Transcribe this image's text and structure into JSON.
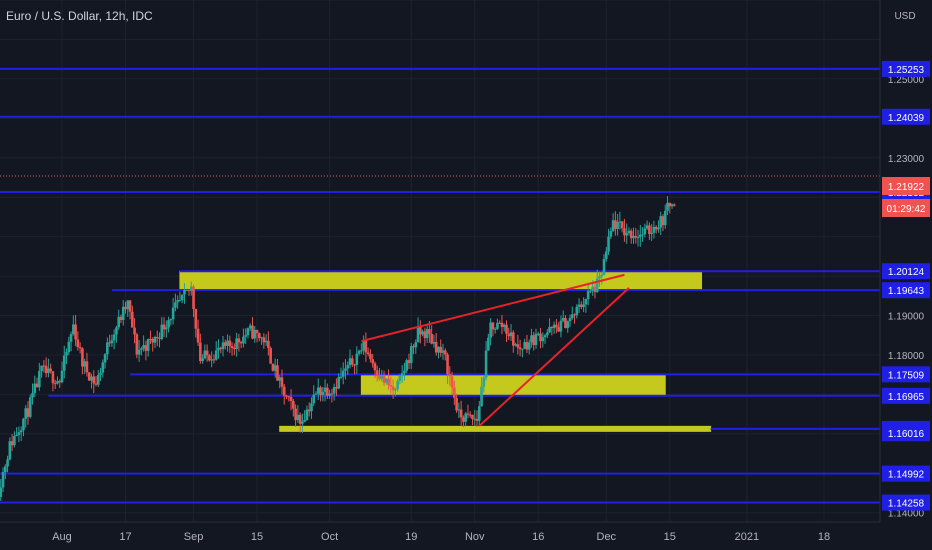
{
  "chart_data": {
    "type": "candlestick",
    "title": "Euro / U.S. Dollar, 12h, IDC",
    "currency_label": "USD",
    "y_range": [
      1.13968,
      1.27
    ],
    "y_ticks": [
      "1.14000",
      "1.18000",
      "1.19000",
      "1.23000",
      "1.25000"
    ],
    "x_labels": [
      "Aug",
      "17",
      "Sep",
      "15",
      "Oct",
      "19",
      "Nov",
      "16",
      "Dec",
      "15",
      "2021",
      "18"
    ],
    "x_label_dates": [
      "2020-08-03",
      "2020-08-17",
      "2020-09-01",
      "2020-09-15",
      "2020-10-01",
      "2020-10-19",
      "2020-11-02",
      "2020-11-16",
      "2020-12-01",
      "2020-12-15",
      "2021-01-01",
      "2021-01-18"
    ],
    "last_price": "1.21922",
    "countdown": "01:29:42",
    "colors": {
      "background": "#131722",
      "up": "#26a69a",
      "down": "#ef5350",
      "level": "#1f1fe6",
      "zone": "#c5c81d",
      "trendline": "#e8222b",
      "label_bg": "#1f1fe6"
    },
    "horizontal_levels": [
      {
        "price": 1.25253,
        "label": "1.25253",
        "from": "2020-07-15"
      },
      {
        "price": 1.24039,
        "label": "1.24039",
        "from": "2020-07-15"
      },
      {
        "price": 1.22132,
        "label": "1.22132",
        "from": "2020-07-15"
      },
      {
        "price": 1.20124,
        "label": "1.20124",
        "from": "2020-08-29"
      },
      {
        "price": 1.19643,
        "label": "1.19643",
        "from": "2020-08-14"
      },
      {
        "price": 1.17509,
        "label": "1.17509",
        "from": "2020-08-18"
      },
      {
        "price": 1.16965,
        "label": "1.16965",
        "from": "2020-07-31"
      },
      {
        "price": 1.16125,
        "label": "1.16125",
        "from": "2020-12-24"
      },
      {
        "price": 1.16016,
        "label": "1.16016",
        "from": "2021-02-01"
      },
      {
        "price": 1.14992,
        "label": "1.14992",
        "from": "2020-07-15"
      },
      {
        "price": 1.14258,
        "label": "1.14258",
        "from": "2020-07-15"
      }
    ],
    "zones": [
      {
        "from": "2020-08-29",
        "to": "2020-12-22",
        "top": 1.20124,
        "bottom": 1.19643
      },
      {
        "from": "2020-10-08",
        "to": "2020-12-14",
        "top": 1.17509,
        "bottom": 1.16965
      },
      {
        "from": "2020-09-20",
        "to": "2020-12-24",
        "top": 1.1619,
        "bottom": 1.1612
      }
    ],
    "trendlines": [
      {
        "from": [
          "2020-10-08",
          1.1835
        ],
        "to": [
          "2020-12-05",
          1.2003
        ]
      },
      {
        "from": [
          "2020-11-03",
          1.162
        ],
        "to": [
          "2020-12-06",
          1.197
        ]
      }
    ],
    "price_path": [
      [
        "2020-07-20",
        1.1435
      ],
      [
        "2020-07-23",
        1.157
      ],
      [
        "2020-07-27",
        1.166
      ],
      [
        "2020-07-30",
        1.176
      ],
      [
        "2020-08-03",
        1.1735
      ],
      [
        "2020-08-06",
        1.1875
      ],
      [
        "2020-08-08",
        1.178
      ],
      [
        "2020-08-11",
        1.1725
      ],
      [
        "2020-08-14",
        1.184
      ],
      [
        "2020-08-18",
        1.193
      ],
      [
        "2020-08-20",
        1.181
      ],
      [
        "2020-08-24",
        1.184
      ],
      [
        "2020-08-28",
        1.191
      ],
      [
        "2020-09-01",
        1.197
      ],
      [
        "2020-09-03",
        1.179
      ],
      [
        "2020-09-07",
        1.181
      ],
      [
        "2020-09-10",
        1.1825
      ],
      [
        "2020-09-14",
        1.186
      ],
      [
        "2020-09-17",
        1.184
      ],
      [
        "2020-09-21",
        1.171
      ],
      [
        "2020-09-25",
        1.163
      ],
      [
        "2020-09-29",
        1.171
      ],
      [
        "2020-10-02",
        1.1715
      ],
      [
        "2020-10-06",
        1.1775
      ],
      [
        "2020-10-09",
        1.1825
      ],
      [
        "2020-10-13",
        1.174
      ],
      [
        "2020-10-16",
        1.1705
      ],
      [
        "2020-10-21",
        1.1855
      ],
      [
        "2020-10-23",
        1.1855
      ],
      [
        "2020-10-27",
        1.179
      ],
      [
        "2020-10-30",
        1.1645
      ],
      [
        "2020-11-03",
        1.1635
      ],
      [
        "2020-11-06",
        1.1875
      ],
      [
        "2020-11-09",
        1.1875
      ],
      [
        "2020-11-12",
        1.1815
      ],
      [
        "2020-11-16",
        1.1845
      ],
      [
        "2020-11-20",
        1.1865
      ],
      [
        "2020-11-24",
        1.1895
      ],
      [
        "2020-11-27",
        1.1945
      ],
      [
        "2020-11-30",
        1.1985
      ],
      [
        "2020-12-03",
        1.2135
      ],
      [
        "2020-12-06",
        1.211
      ],
      [
        "2020-12-09",
        1.2105
      ],
      [
        "2020-12-11",
        1.2115
      ],
      [
        "2020-12-14",
        1.2145
      ],
      [
        "2020-12-16",
        1.2195
      ]
    ]
  }
}
